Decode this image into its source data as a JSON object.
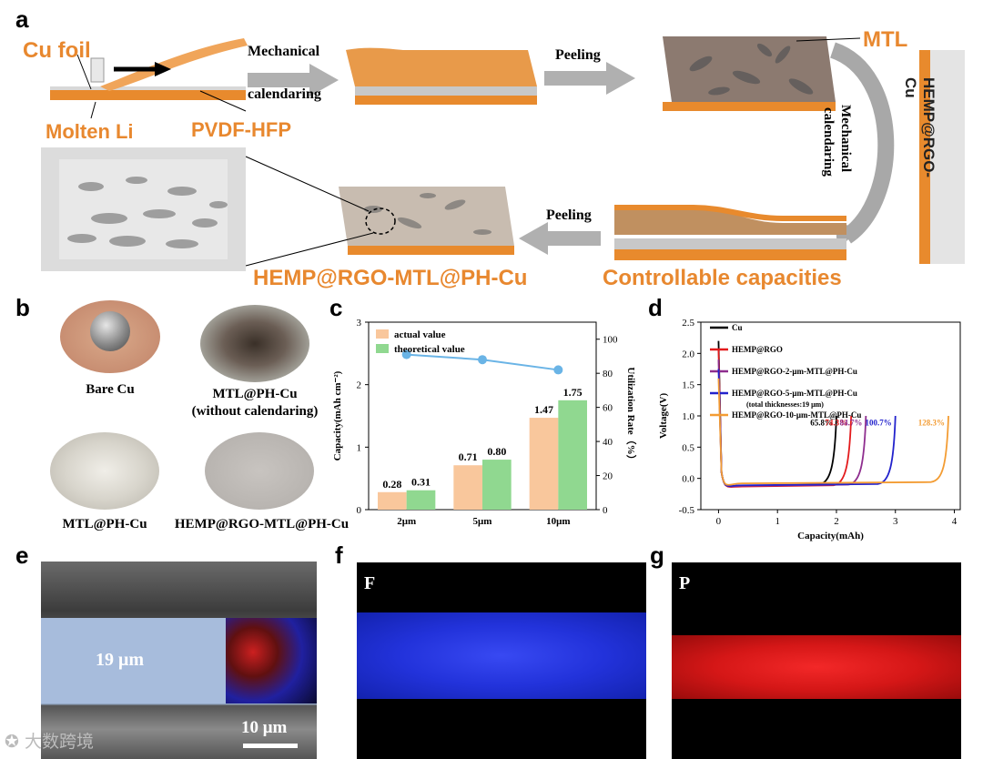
{
  "panels": {
    "a": "a",
    "b": "b",
    "c": "c",
    "d": "d",
    "e": "e",
    "f": "f",
    "g": "g"
  },
  "schematic": {
    "cu_foil": "Cu foil",
    "molten_li": "Molten Li",
    "pvdf_hfp": "PVDF-HFP",
    "mechanical": "Mechanical",
    "calendaring": "calendaring",
    "peeling_1": "Peeling",
    "mtl": "MTL",
    "mech_vertical": "Mechanical",
    "cal_vertical": "calendaring",
    "hemp_side": "HEMP@RGO-Cu",
    "peeling_2": "Peeling",
    "hemp_mtl": "HEMP@RGO-MTL@PH-Cu",
    "controllable": "Controllable capacities"
  },
  "photos": {
    "bare_cu": "Bare Cu",
    "mtl_ph_cu": "MTL@PH-Cu",
    "without_cal": "(without calendaring)",
    "mtl_ph_cu_2": "MTL@PH-Cu",
    "hemp_mtl_ph": "HEMP@RGO-MTL@PH-Cu"
  },
  "chart_data": [
    {
      "type": "bar",
      "categories": [
        "2μm",
        "5μm",
        "10μm"
      ],
      "series": [
        {
          "name": "actual value",
          "values": [
            0.28,
            0.71,
            1.47
          ],
          "color": "#f9c79c"
        },
        {
          "name": "theoretical value",
          "values": [
            0.31,
            0.8,
            1.75
          ],
          "color": "#90d890"
        }
      ],
      "line": {
        "values": [
          91,
          88,
          82
        ],
        "color": "#6ab4e6"
      },
      "ylabel": "Capacity(mAh cm⁻²)",
      "y2label": "Utilization Rate（%）",
      "ylim": [
        0,
        3
      ],
      "yticks": [
        "0",
        "1",
        "2",
        "3"
      ],
      "y2lim": [
        0,
        110
      ],
      "y2ticks": [
        "0",
        "20",
        "40",
        "60",
        "80",
        "100"
      ],
      "legend": "top-left"
    },
    {
      "type": "line",
      "xlabel": "Capacity(mAh)",
      "ylabel": "Voltage(V)",
      "xlim": [
        -0.3,
        4.1
      ],
      "xticks": [
        "0",
        "1",
        "2",
        "3",
        "4"
      ],
      "ylim": [
        -0.5,
        2.5
      ],
      "yticks": [
        "-0.5",
        "0.0",
        "0.5",
        "1.0",
        "1.5",
        "2.0",
        "2.5"
      ],
      "series": [
        {
          "name": "Cu",
          "color": "#000000",
          "end": 2.0,
          "label": "65.8%"
        },
        {
          "name": "HEMP@RGO",
          "color": "#e31a1c",
          "end": 2.25,
          "label": "74.3%"
        },
        {
          "name": "HEMP@RGO-2-μm-MTL@PH-Cu",
          "color": "#8e2d8e",
          "end": 2.5,
          "label": "84.7%"
        },
        {
          "name": "HEMP@RGO-5-μm-MTL@PH-Cu",
          "color": "#2222cc",
          "end": 3.0,
          "label": "100.7%"
        },
        {
          "name": "HEMP@RGO-10-μm-MTL@PH-Cu",
          "color": "#f39c33",
          "end": 3.9,
          "label": "128.3%"
        }
      ],
      "legend_note": "(total thicknesses:19 μm)",
      "legend": "top-left"
    }
  ],
  "sem": {
    "thickness": "19 μm",
    "scale": "10 μm"
  },
  "eds": {
    "f": "F",
    "g": "P",
    "f_color": "#2a3cff",
    "g_color": "#ff2020"
  },
  "watermark": "大数跨境"
}
